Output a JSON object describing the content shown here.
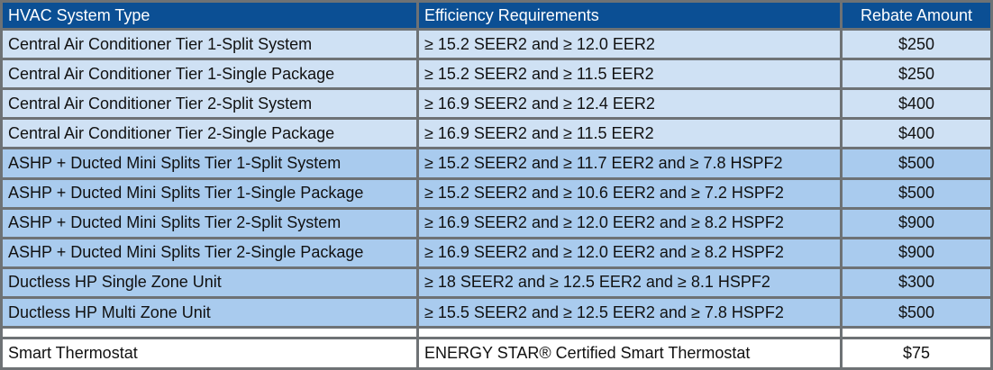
{
  "headers": [
    "HVAC System Type",
    "Efficiency Requirements",
    "Rebate Amount"
  ],
  "rows": [
    {
      "type": "Central Air Conditioner Tier 1-Split System",
      "requirements": "≥ 15.2 SEER2 and ≥ 12.0 EER2",
      "rebate": "$250"
    },
    {
      "type": "Central Air Conditioner Tier 1-Single Package",
      "requirements": "≥ 15.2 SEER2 and ≥ 11.5 EER2",
      "rebate": "$250"
    },
    {
      "type": "Central Air Conditioner Tier 2-Split System",
      "requirements": "≥ 16.9 SEER2 and ≥ 12.4 EER2",
      "rebate": "$400"
    },
    {
      "type": "Central Air Conditioner Tier 2-Single Package",
      "requirements": "≥ 16.9 SEER2 and ≥ 11.5 EER2",
      "rebate": "$400"
    },
    {
      "type": "ASHP + Ducted Mini Splits Tier 1-Split System",
      "requirements": "≥ 15.2 SEER2 and ≥ 11.7 EER2 and ≥ 7.8 HSPF2",
      "rebate": "$500"
    },
    {
      "type": "ASHP + Ducted Mini Splits Tier 1-Single Package",
      "requirements": "≥ 15.2 SEER2 and ≥ 10.6 EER2 and ≥ 7.2 HSPF2",
      "rebate": "$500"
    },
    {
      "type": "ASHP + Ducted Mini Splits Tier 2-Split System",
      "requirements": "≥ 16.9 SEER2 and ≥ 12.0 EER2 and ≥ 8.2 HSPF2",
      "rebate": "$900"
    },
    {
      "type": "ASHP + Ducted Mini Splits Tier 2-Single Package",
      "requirements": "≥ 16.9 SEER2 and ≥ 12.0 EER2 and ≥ 8.2 HSPF2",
      "rebate": "$900"
    },
    {
      "type": "Ductless HP Single Zone Unit",
      "requirements": "≥ 18 SEER2 and ≥ 12.5 EER2 and ≥ 8.1 HSPF2",
      "rebate": "$300"
    },
    {
      "type": "Ductless HP Multi Zone Unit",
      "requirements": "≥ 15.5 SEER2 and ≥ 12.5 EER2 and ≥ 7.8 HSPF2",
      "rebate": "$500"
    },
    {
      "type": "Smart Thermostat",
      "requirements": "ENERGY STAR® Certified Smart Thermostat",
      "rebate": "$75"
    }
  ],
  "colors": {
    "header_bg": "#0b4f94",
    "header_text": "#ffffff",
    "light_row_bg": "#cfe1f4",
    "mid_row_bg": "#a9cbee",
    "plain_row_bg": "#ffffff",
    "grid": "#6e7275"
  }
}
